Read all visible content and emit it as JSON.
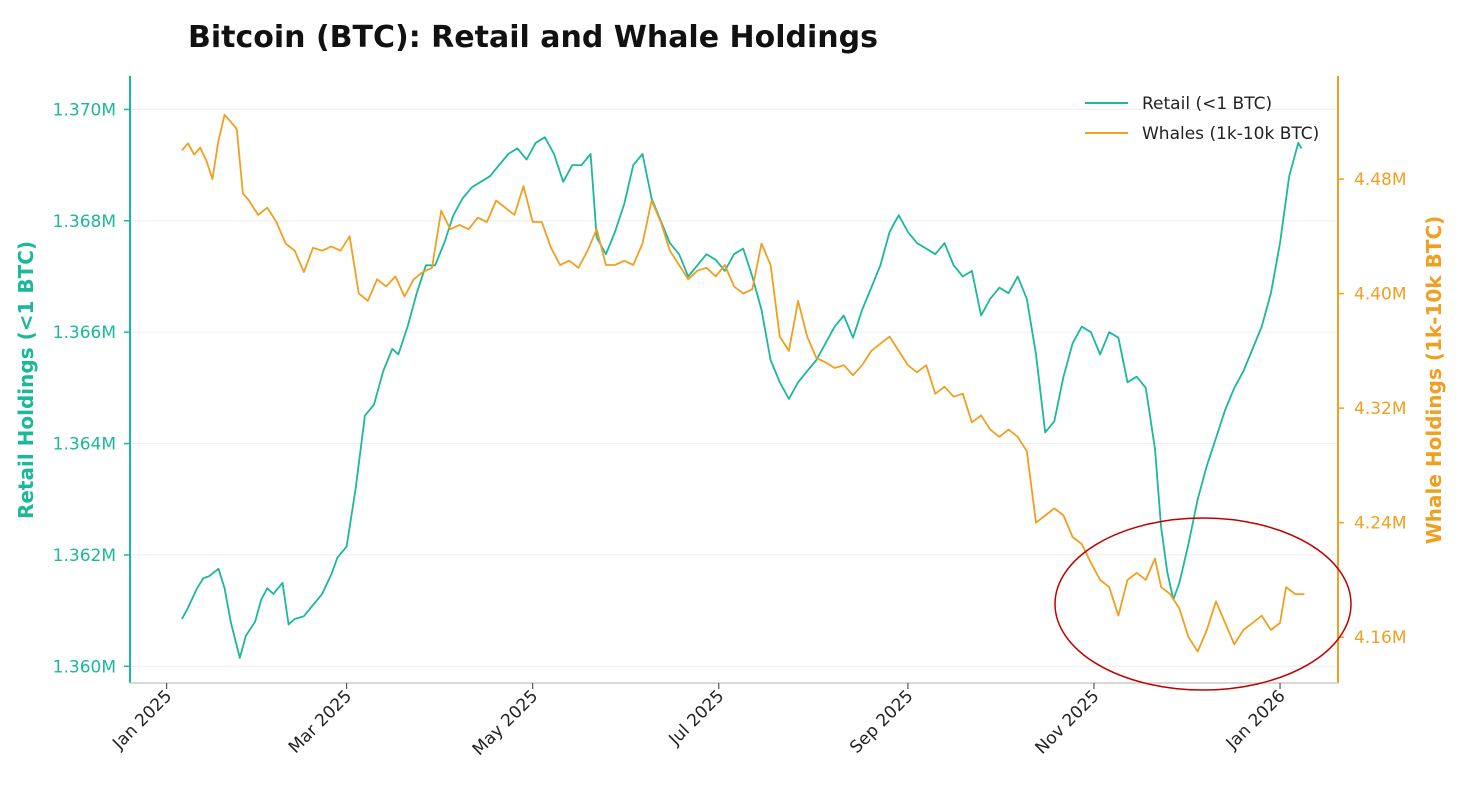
{
  "chart_data": {
    "type": "line",
    "title": "Bitcoin (BTC): Retail and Whale Holdings",
    "xlabel": "",
    "x_ticks": [
      "Jan 2025",
      "Mar 2025",
      "May 2025",
      "Jul 2025",
      "Sep 2025",
      "Nov 2025",
      "Jan 2026"
    ],
    "x_tick_dates": [
      "2025-01-01",
      "2025-03-01",
      "2025-05-01",
      "2025-07-01",
      "2025-09-01",
      "2025-11-01",
      "2026-01-01"
    ],
    "x_range": [
      "2024-12-20",
      "2026-01-20"
    ],
    "y_left": {
      "label": "Retail Holdings (<1 BTC)",
      "ylim": [
        1.3597,
        1.3706
      ],
      "ticks": [
        1.36,
        1.362,
        1.364,
        1.366,
        1.368,
        1.37
      ],
      "tick_labels": [
        "1.360M",
        "1.362M",
        "1.364M",
        "1.366M",
        "1.368M",
        "1.370M"
      ],
      "unit": "M"
    },
    "y_right": {
      "label": "Whale Holdings (1k-10k BTC)",
      "ylim": [
        4.128,
        4.552
      ],
      "ticks": [
        4.16,
        4.24,
        4.32,
        4.4,
        4.48
      ],
      "tick_labels": [
        "4.16M",
        "4.24M",
        "4.32M",
        "4.40M",
        "4.48M"
      ],
      "unit": "M"
    },
    "legend_position": "top-right",
    "series": [
      {
        "name": "Retail (<1 BTC)",
        "axis": "left",
        "color": "#1bb89a",
        "points": [
          [
            "2025-01-06",
            1.36085
          ],
          [
            "2025-01-08",
            1.36105
          ],
          [
            "2025-01-11",
            1.3614
          ],
          [
            "2025-01-13",
            1.36158
          ],
          [
            "2025-01-15",
            1.36162
          ],
          [
            "2025-01-18",
            1.36175
          ],
          [
            "2025-01-20",
            1.3614
          ],
          [
            "2025-01-22",
            1.3608
          ],
          [
            "2025-01-25",
            1.36015
          ],
          [
            "2025-01-27",
            1.36055
          ],
          [
            "2025-01-30",
            1.3608
          ],
          [
            "2025-02-01",
            1.3612
          ],
          [
            "2025-02-03",
            1.3614
          ],
          [
            "2025-02-05",
            1.3613
          ],
          [
            "2025-02-08",
            1.3615
          ],
          [
            "2025-02-10",
            1.36075
          ],
          [
            "2025-02-12",
            1.36085
          ],
          [
            "2025-02-15",
            1.3609
          ],
          [
            "2025-02-18",
            1.3611
          ],
          [
            "2025-02-21",
            1.3613
          ],
          [
            "2025-02-24",
            1.36165
          ],
          [
            "2025-02-26",
            1.36195
          ],
          [
            "2025-03-01",
            1.36215
          ],
          [
            "2025-03-04",
            1.3632
          ],
          [
            "2025-03-07",
            1.3645
          ],
          [
            "2025-03-10",
            1.3647
          ],
          [
            "2025-03-13",
            1.3653
          ],
          [
            "2025-03-16",
            1.3657
          ],
          [
            "2025-03-18",
            1.3656
          ],
          [
            "2025-03-21",
            1.3661
          ],
          [
            "2025-03-24",
            1.3667
          ],
          [
            "2025-03-27",
            1.3672
          ],
          [
            "2025-03-30",
            1.3672
          ],
          [
            "2025-04-02",
            1.3676
          ],
          [
            "2025-04-05",
            1.3681
          ],
          [
            "2025-04-08",
            1.3684
          ],
          [
            "2025-04-11",
            1.3686
          ],
          [
            "2025-04-14",
            1.3687
          ],
          [
            "2025-04-17",
            1.3688
          ],
          [
            "2025-04-20",
            1.369
          ],
          [
            "2025-04-23",
            1.3692
          ],
          [
            "2025-04-26",
            1.3693
          ],
          [
            "2025-04-29",
            1.3691
          ],
          [
            "2025-05-02",
            1.3694
          ],
          [
            "2025-05-05",
            1.3695
          ],
          [
            "2025-05-08",
            1.3692
          ],
          [
            "2025-05-11",
            1.3687
          ],
          [
            "2025-05-14",
            1.369
          ],
          [
            "2025-05-17",
            1.369
          ],
          [
            "2025-05-20",
            1.3692
          ],
          [
            "2025-05-22",
            1.3677
          ],
          [
            "2025-05-25",
            1.3674
          ],
          [
            "2025-05-28",
            1.3678
          ],
          [
            "2025-05-31",
            1.3683
          ],
          [
            "2025-06-03",
            1.369
          ],
          [
            "2025-06-06",
            1.3692
          ],
          [
            "2025-06-09",
            1.3684
          ],
          [
            "2025-06-12",
            1.368
          ],
          [
            "2025-06-15",
            1.3676
          ],
          [
            "2025-06-18",
            1.3674
          ],
          [
            "2025-06-21",
            1.367
          ],
          [
            "2025-06-24",
            1.3672
          ],
          [
            "2025-06-27",
            1.3674
          ],
          [
            "2025-06-30",
            1.3673
          ],
          [
            "2025-07-03",
            1.3671
          ],
          [
            "2025-07-06",
            1.3674
          ],
          [
            "2025-07-09",
            1.3675
          ],
          [
            "2025-07-12",
            1.367
          ],
          [
            "2025-07-15",
            1.3664
          ],
          [
            "2025-07-18",
            1.3655
          ],
          [
            "2025-07-21",
            1.3651
          ],
          [
            "2025-07-24",
            1.3648
          ],
          [
            "2025-07-27",
            1.3651
          ],
          [
            "2025-07-30",
            1.3653
          ],
          [
            "2025-08-02",
            1.3655
          ],
          [
            "2025-08-05",
            1.3658
          ],
          [
            "2025-08-08",
            1.3661
          ],
          [
            "2025-08-11",
            1.3663
          ],
          [
            "2025-08-14",
            1.3659
          ],
          [
            "2025-08-17",
            1.3664
          ],
          [
            "2025-08-20",
            1.3668
          ],
          [
            "2025-08-23",
            1.3672
          ],
          [
            "2025-08-26",
            1.3678
          ],
          [
            "2025-08-29",
            1.3681
          ],
          [
            "2025-09-01",
            1.3678
          ],
          [
            "2025-09-04",
            1.3676
          ],
          [
            "2025-09-07",
            1.3675
          ],
          [
            "2025-09-10",
            1.3674
          ],
          [
            "2025-09-13",
            1.3676
          ],
          [
            "2025-09-16",
            1.3672
          ],
          [
            "2025-09-19",
            1.367
          ],
          [
            "2025-09-22",
            1.3671
          ],
          [
            "2025-09-25",
            1.3663
          ],
          [
            "2025-09-28",
            1.3666
          ],
          [
            "2025-10-01",
            1.3668
          ],
          [
            "2025-10-04",
            1.3667
          ],
          [
            "2025-10-07",
            1.367
          ],
          [
            "2025-10-10",
            1.3666
          ],
          [
            "2025-10-13",
            1.3656
          ],
          [
            "2025-10-16",
            1.3642
          ],
          [
            "2025-10-19",
            1.3644
          ],
          [
            "2025-10-22",
            1.3652
          ],
          [
            "2025-10-25",
            1.3658
          ],
          [
            "2025-10-28",
            1.3661
          ],
          [
            "2025-10-31",
            1.366
          ],
          [
            "2025-11-03",
            1.3656
          ],
          [
            "2025-11-06",
            1.366
          ],
          [
            "2025-11-09",
            1.3659
          ],
          [
            "2025-11-12",
            1.3651
          ],
          [
            "2025-11-15",
            1.3652
          ],
          [
            "2025-11-18",
            1.365
          ],
          [
            "2025-11-21",
            1.3639
          ],
          [
            "2025-11-23",
            1.3625
          ],
          [
            "2025-11-25",
            1.3617
          ],
          [
            "2025-11-27",
            1.3612
          ],
          [
            "2025-11-29",
            1.3615
          ],
          [
            "2025-12-02",
            1.3622
          ],
          [
            "2025-12-05",
            1.363
          ],
          [
            "2025-12-08",
            1.3636
          ],
          [
            "2025-12-11",
            1.3641
          ],
          [
            "2025-12-14",
            1.3646
          ],
          [
            "2025-12-17",
            1.365
          ],
          [
            "2025-12-20",
            1.3653
          ],
          [
            "2025-12-23",
            1.3657
          ],
          [
            "2025-12-26",
            1.3661
          ],
          [
            "2025-12-29",
            1.3667
          ],
          [
            "2026-01-01",
            1.3676
          ],
          [
            "2026-01-04",
            1.3688
          ],
          [
            "2026-01-07",
            1.3694
          ],
          [
            "2026-01-08",
            1.3693
          ]
        ]
      },
      {
        "name": "Whales (1k-10k BTC)",
        "axis": "right",
        "color": "#f0a020",
        "points": [
          [
            "2025-01-06",
            4.5
          ],
          [
            "2025-01-08",
            4.505
          ],
          [
            "2025-01-10",
            4.497
          ],
          [
            "2025-01-12",
            4.502
          ],
          [
            "2025-01-14",
            4.493
          ],
          [
            "2025-01-16",
            4.48
          ],
          [
            "2025-01-18",
            4.507
          ],
          [
            "2025-01-20",
            4.525
          ],
          [
            "2025-01-22",
            4.52
          ],
          [
            "2025-01-24",
            4.515
          ],
          [
            "2025-01-26",
            4.47
          ],
          [
            "2025-01-28",
            4.465
          ],
          [
            "2025-01-31",
            4.455
          ],
          [
            "2025-02-03",
            4.46
          ],
          [
            "2025-02-06",
            4.45
          ],
          [
            "2025-02-09",
            4.435
          ],
          [
            "2025-02-12",
            4.43
          ],
          [
            "2025-02-15",
            4.415
          ],
          [
            "2025-02-18",
            4.432
          ],
          [
            "2025-02-21",
            4.43
          ],
          [
            "2025-02-24",
            4.433
          ],
          [
            "2025-02-27",
            4.43
          ],
          [
            "2025-03-02",
            4.44
          ],
          [
            "2025-03-05",
            4.4
          ],
          [
            "2025-03-08",
            4.395
          ],
          [
            "2025-03-11",
            4.41
          ],
          [
            "2025-03-14",
            4.405
          ],
          [
            "2025-03-17",
            4.412
          ],
          [
            "2025-03-20",
            4.398
          ],
          [
            "2025-03-23",
            4.41
          ],
          [
            "2025-03-26",
            4.415
          ],
          [
            "2025-03-29",
            4.418
          ],
          [
            "2025-04-01",
            4.458
          ],
          [
            "2025-04-04",
            4.445
          ],
          [
            "2025-04-07",
            4.448
          ],
          [
            "2025-04-10",
            4.445
          ],
          [
            "2025-04-13",
            4.453
          ],
          [
            "2025-04-16",
            4.45
          ],
          [
            "2025-04-19",
            4.465
          ],
          [
            "2025-04-22",
            4.46
          ],
          [
            "2025-04-25",
            4.455
          ],
          [
            "2025-04-28",
            4.475
          ],
          [
            "2025-05-01",
            4.45
          ],
          [
            "2025-05-04",
            4.45
          ],
          [
            "2025-05-07",
            4.432
          ],
          [
            "2025-05-10",
            4.42
          ],
          [
            "2025-05-13",
            4.423
          ],
          [
            "2025-05-16",
            4.418
          ],
          [
            "2025-05-19",
            4.43
          ],
          [
            "2025-05-22",
            4.445
          ],
          [
            "2025-05-25",
            4.42
          ],
          [
            "2025-05-28",
            4.42
          ],
          [
            "2025-05-31",
            4.423
          ],
          [
            "2025-06-03",
            4.42
          ],
          [
            "2025-06-06",
            4.435
          ],
          [
            "2025-06-09",
            4.465
          ],
          [
            "2025-06-12",
            4.45
          ],
          [
            "2025-06-15",
            4.43
          ],
          [
            "2025-06-18",
            4.42
          ],
          [
            "2025-06-21",
            4.41
          ],
          [
            "2025-06-24",
            4.416
          ],
          [
            "2025-06-27",
            4.418
          ],
          [
            "2025-06-30",
            4.412
          ],
          [
            "2025-07-03",
            4.42
          ],
          [
            "2025-07-06",
            4.405
          ],
          [
            "2025-07-09",
            4.4
          ],
          [
            "2025-07-12",
            4.403
          ],
          [
            "2025-07-15",
            4.435
          ],
          [
            "2025-07-18",
            4.42
          ],
          [
            "2025-07-21",
            4.37
          ],
          [
            "2025-07-24",
            4.36
          ],
          [
            "2025-07-27",
            4.395
          ],
          [
            "2025-07-30",
            4.37
          ],
          [
            "2025-08-02",
            4.355
          ],
          [
            "2025-08-05",
            4.352
          ],
          [
            "2025-08-08",
            4.348
          ],
          [
            "2025-08-11",
            4.35
          ],
          [
            "2025-08-14",
            4.343
          ],
          [
            "2025-08-17",
            4.35
          ],
          [
            "2025-08-20",
            4.36
          ],
          [
            "2025-08-23",
            4.365
          ],
          [
            "2025-08-26",
            4.37
          ],
          [
            "2025-08-29",
            4.36
          ],
          [
            "2025-09-01",
            4.35
          ],
          [
            "2025-09-04",
            4.345
          ],
          [
            "2025-09-07",
            4.35
          ],
          [
            "2025-09-10",
            4.33
          ],
          [
            "2025-09-13",
            4.335
          ],
          [
            "2025-09-16",
            4.328
          ],
          [
            "2025-09-19",
            4.33
          ],
          [
            "2025-09-22",
            4.31
          ],
          [
            "2025-09-25",
            4.315
          ],
          [
            "2025-09-28",
            4.305
          ],
          [
            "2025-10-01",
            4.3
          ],
          [
            "2025-10-04",
            4.305
          ],
          [
            "2025-10-07",
            4.3
          ],
          [
            "2025-10-10",
            4.29
          ],
          [
            "2025-10-13",
            4.24
          ],
          [
            "2025-10-16",
            4.245
          ],
          [
            "2025-10-19",
            4.25
          ],
          [
            "2025-10-22",
            4.245
          ],
          [
            "2025-10-25",
            4.23
          ],
          [
            "2025-10-28",
            4.225
          ],
          [
            "2025-10-31",
            4.212
          ],
          [
            "2025-11-03",
            4.2
          ],
          [
            "2025-11-06",
            4.195
          ],
          [
            "2025-11-09",
            4.175
          ],
          [
            "2025-11-12",
            4.2
          ],
          [
            "2025-11-15",
            4.205
          ],
          [
            "2025-11-18",
            4.2
          ],
          [
            "2025-11-21",
            4.215
          ],
          [
            "2025-11-23",
            4.195
          ],
          [
            "2025-11-26",
            4.19
          ],
          [
            "2025-11-29",
            4.18
          ],
          [
            "2025-12-02",
            4.16
          ],
          [
            "2025-12-05",
            4.15
          ],
          [
            "2025-12-08",
            4.165
          ],
          [
            "2025-12-11",
            4.185
          ],
          [
            "2025-12-14",
            4.17
          ],
          [
            "2025-12-17",
            4.155
          ],
          [
            "2025-12-20",
            4.165
          ],
          [
            "2025-12-23",
            4.17
          ],
          [
            "2025-12-26",
            4.175
          ],
          [
            "2025-12-29",
            4.165
          ],
          [
            "2026-01-01",
            4.17
          ],
          [
            "2026-01-03",
            4.195
          ],
          [
            "2026-01-06",
            4.19
          ],
          [
            "2026-01-09",
            4.19
          ]
        ]
      }
    ],
    "annotations": [
      {
        "type": "ellipse",
        "color": "#c00000",
        "description": "circled region",
        "x_center": "2025-12-05",
        "y_center_right": 4.175
      }
    ]
  }
}
